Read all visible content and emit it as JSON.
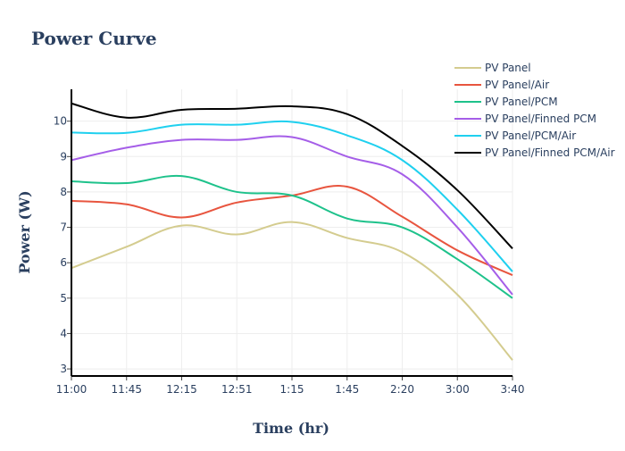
{
  "chart_data": {
    "type": "line",
    "title": "Power Curve",
    "xlabel": "Time (hr)",
    "ylabel": "Power (W)",
    "categories": [
      "11:00",
      "11:45",
      "12:15",
      "12:51",
      "1:15",
      "1:45",
      "2:20",
      "3:00",
      "3:40"
    ],
    "ylim": [
      2.8,
      10.9
    ],
    "yticks": [
      3,
      4,
      5,
      6,
      7,
      8,
      9,
      10
    ],
    "grid": true,
    "legend_position": "top-right",
    "series": [
      {
        "name": "PV Panel",
        "color": "#d4cc8f",
        "values": [
          5.85,
          6.45,
          7.05,
          6.8,
          7.15,
          6.7,
          6.3,
          5.1,
          3.25
        ]
      },
      {
        "name": "PV Panel/Air",
        "color": "#e8553f",
        "values": [
          7.75,
          7.65,
          7.28,
          7.7,
          7.9,
          8.15,
          7.3,
          6.35,
          5.65
        ]
      },
      {
        "name": "PV Panel/PCM",
        "color": "#1ec28b",
        "values": [
          8.3,
          8.25,
          8.45,
          8.0,
          7.9,
          7.25,
          7.0,
          6.1,
          5.0
        ]
      },
      {
        "name": "PV Panel/Finned PCM",
        "color": "#a55ee8",
        "values": [
          8.9,
          9.25,
          9.47,
          9.47,
          9.55,
          9.0,
          8.5,
          7.0,
          5.1
        ]
      },
      {
        "name": "PV Panel/PCM/Air",
        "color": "#1fd0ef",
        "values": [
          9.68,
          9.67,
          9.9,
          9.9,
          9.98,
          9.6,
          8.9,
          7.5,
          5.75
        ]
      },
      {
        "name": "PV Panel/Finned PCM/Air",
        "color": "#000000",
        "values": [
          10.5,
          10.1,
          10.32,
          10.35,
          10.42,
          10.2,
          9.3,
          8.05,
          6.4
        ]
      }
    ]
  }
}
